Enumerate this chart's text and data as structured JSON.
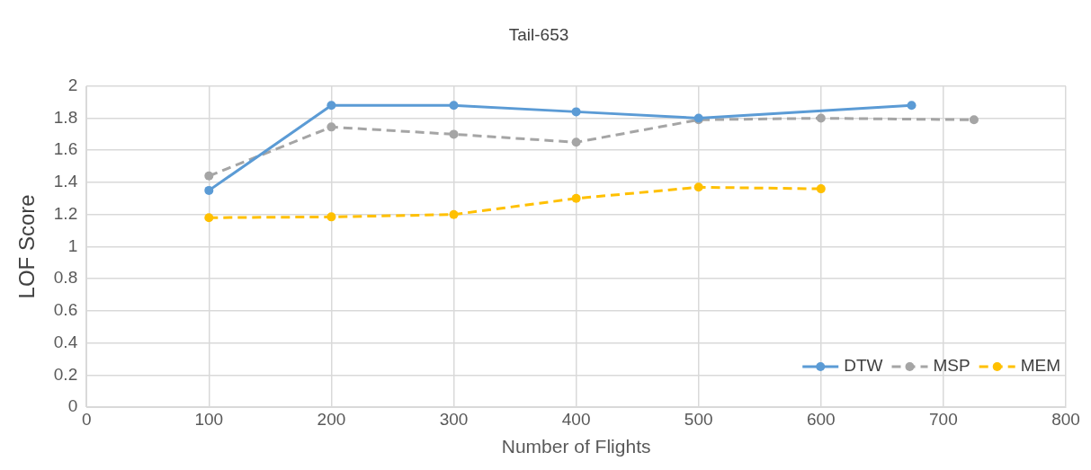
{
  "chart_data": {
    "type": "line",
    "title": "Tail-653",
    "xlabel": "Number of Flights",
    "ylabel": "LOF Score",
    "xlim": [
      0,
      800
    ],
    "xticks": [
      0,
      100,
      200,
      300,
      400,
      500,
      600,
      700,
      800
    ],
    "ylim": [
      0,
      2
    ],
    "yticks": [
      0,
      0.2,
      0.4,
      0.6,
      0.8,
      1,
      1.2,
      1.4,
      1.6,
      1.8,
      2
    ],
    "grid": true,
    "legend": "bottom right",
    "marker": "circle",
    "series": [
      {
        "name": "DTW",
        "color": "#5b9bd5",
        "line_style": "solid",
        "x": [
          100,
          200,
          300,
          400,
          500,
          674
        ],
        "values": [
          1.35,
          1.88,
          1.88,
          1.84,
          1.8,
          1.88
        ]
      },
      {
        "name": "MSP",
        "color": "#a5a5a5",
        "line_style": "dashed",
        "x": [
          100,
          200,
          300,
          400,
          500,
          600,
          725
        ],
        "values": [
          1.44,
          1.745,
          1.7,
          1.65,
          1.79,
          1.8,
          1.79
        ]
      },
      {
        "name": "MEM",
        "color": "#ffc000",
        "line_style": "dashed",
        "x": [
          100,
          200,
          300,
          400,
          500,
          600
        ],
        "values": [
          1.18,
          1.185,
          1.2,
          1.3,
          1.37,
          1.36
        ]
      }
    ]
  }
}
